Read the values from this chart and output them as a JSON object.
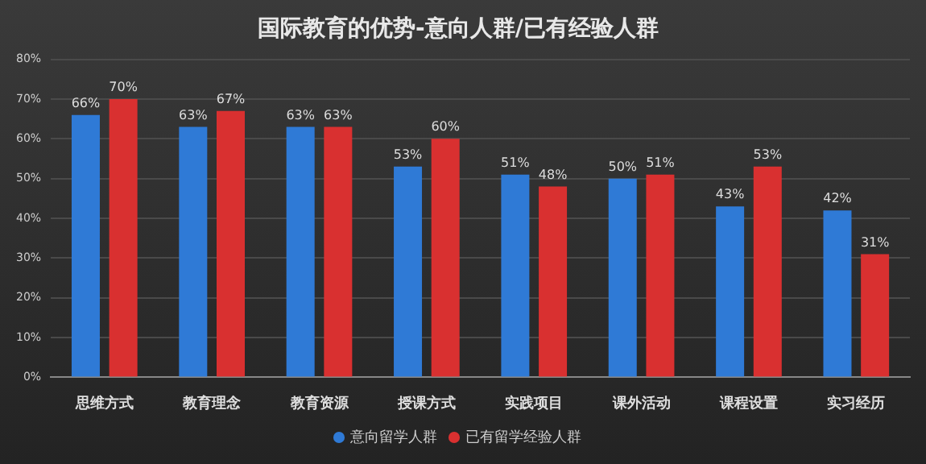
{
  "chart_data": {
    "type": "bar",
    "title": "国际教育的优势-意向人群/已有经验人群",
    "categories": [
      "思维方式",
      "教育理念",
      "教育资源",
      "授课方式",
      "实践项目",
      "课外活动",
      "课程设置",
      "实习经历"
    ],
    "series": [
      {
        "name": "意向留学人群",
        "color": "#2f7ad6",
        "values": [
          66,
          63,
          63,
          53,
          51,
          50,
          43,
          42
        ],
        "value_labels": [
          "66%",
          "63%",
          "63%",
          "53%",
          "51%",
          "50%",
          "43%",
          "42%"
        ]
      },
      {
        "name": "已有留学经验人群",
        "color": "#d93030",
        "values": [
          70,
          67,
          63,
          60,
          48,
          51,
          53,
          31
        ],
        "value_labels": [
          "70%",
          "67%",
          "63%",
          "60%",
          "48%",
          "51%",
          "53%",
          "31%"
        ]
      }
    ],
    "ylim": [
      0,
      80
    ],
    "yticks": [
      {
        "value": 0,
        "label": "0%"
      },
      {
        "value": 10,
        "label": "10%"
      },
      {
        "value": 20,
        "label": "20%"
      },
      {
        "value": 30,
        "label": "30%"
      },
      {
        "value": 40,
        "label": "40%"
      },
      {
        "value": 50,
        "label": "50%"
      },
      {
        "value": 60,
        "label": "60%"
      },
      {
        "value": 70,
        "label": "70%"
      },
      {
        "value": 80,
        "label": "80%"
      }
    ],
    "grid": "y",
    "legend": "bottom"
  }
}
